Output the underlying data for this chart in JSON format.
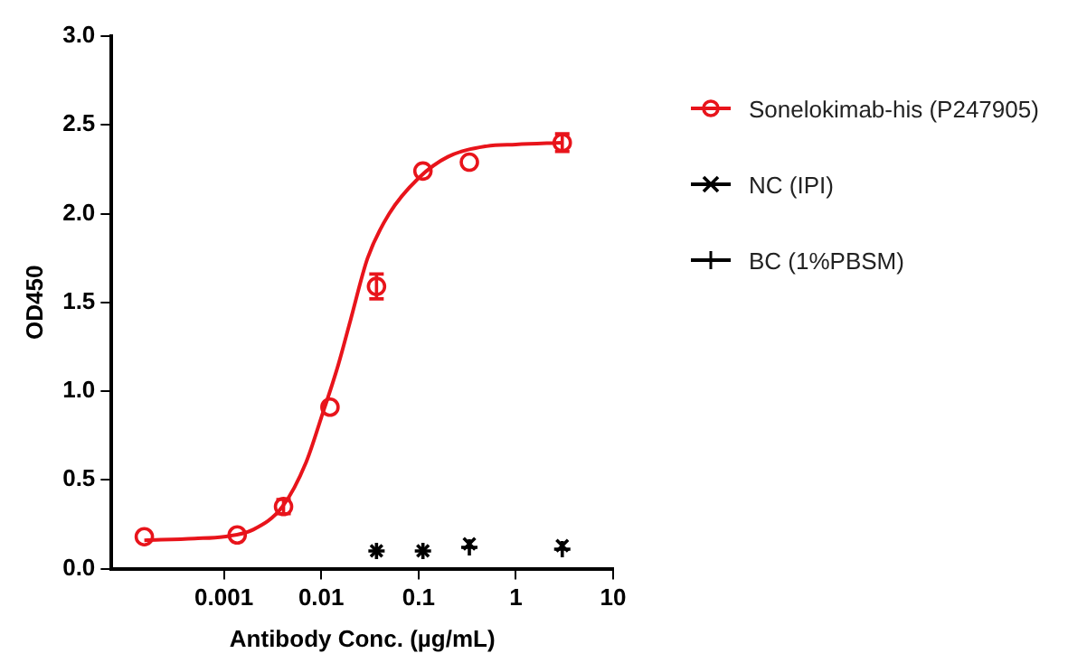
{
  "chart_data": {
    "type": "scatter",
    "xlabel": "Antibody Conc. (µg/mL)",
    "ylabel": "OD450",
    "log": "x",
    "grid": false,
    "legend": "right",
    "xlim": [
      7.4e-05,
      10
    ],
    "xticks": [
      0.001,
      0.01,
      0.1,
      1,
      10
    ],
    "ylim": [
      0,
      3
    ],
    "yticks": [
      {
        "value": 0,
        "label": "0.0"
      },
      0.5,
      {
        "value": 1,
        "label": "1.0"
      },
      1.5,
      {
        "value": 2,
        "label": "2.0"
      },
      2.5,
      {
        "value": 3,
        "label": "3.0"
      }
    ],
    "series": [
      {
        "name": "Sonelokimab-his (P247905)",
        "color": "#e8141b",
        "marker": "circle",
        "x": [
          0.000152,
          0.00137,
          0.0041,
          0.0123,
          0.037,
          0.111,
          0.333,
          3
        ],
        "values": [
          0.18,
          0.19,
          0.35,
          0.91,
          1.59,
          2.24,
          2.29,
          2.4
        ],
        "errors": [
          null,
          null,
          0.04,
          null,
          0.07,
          null,
          null,
          0.05
        ]
      },
      {
        "type": "line",
        "color": "#e8141b",
        "marker": "none",
        "x": [
          0.000152,
          0.0005,
          0.001,
          0.002,
          0.004,
          0.007,
          0.01,
          0.015,
          0.02,
          0.03,
          0.05,
          0.1,
          0.2,
          0.5,
          1,
          3
        ],
        "values": [
          0.16,
          0.17,
          0.18,
          0.22,
          0.35,
          0.6,
          0.85,
          1.15,
          1.4,
          1.75,
          2.0,
          2.2,
          2.32,
          2.38,
          2.39,
          2.4
        ]
      },
      {
        "name": "NC (IPI)",
        "color": "#000000",
        "marker": "cross",
        "x": [
          0.037,
          0.111,
          0.333,
          3
        ],
        "values": [
          0.1,
          0.1,
          0.14,
          0.13
        ]
      },
      {
        "name": "BC (1%PBSM)",
        "color": "#000000",
        "marker": "plus",
        "x": [
          0.037,
          0.111,
          0.333,
          3
        ],
        "values": [
          0.1,
          0.1,
          0.12,
          0.11
        ]
      }
    ]
  }
}
